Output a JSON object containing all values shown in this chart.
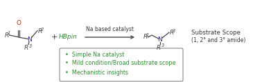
{
  "bg_color": "#ffffff",
  "text_color_black": "#333333",
  "text_color_blue": "#2222bb",
  "text_color_green": "#2e8b2e",
  "text_color_gray": "#444444",
  "oxygen_color": "#cc2200",
  "nitrogen_color": "#2222bb",
  "green_color": "#2e8b2e",
  "arrow_color": "#444444",
  "box_edge_color": "#888888",
  "amide_R1": "R",
  "amide_R2": "R",
  "amide_R3": "R",
  "sup1": "1",
  "sup2": "2",
  "sup3": "3",
  "plus_sign": "+",
  "HBpin": "HBpin",
  "catalyst_label": "Na based catalyst",
  "scope_line1": "Substrate Scope",
  "scope_line2": "(1, 2° and 3° amide)",
  "bullet1": "•  Simple Na catalyst",
  "bullet2": "•  Mild condition/Broad substrate scope",
  "bullet3": "•  Mechanistic insights"
}
